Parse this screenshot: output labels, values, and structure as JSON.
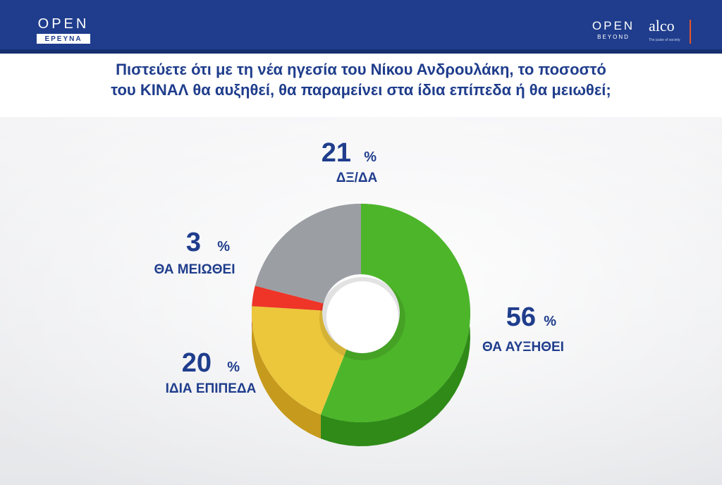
{
  "header": {
    "logo_left_top": "OPEN",
    "logo_left_bottom": "ΕΡΕΥΝΑ",
    "logo_right_top": "OPEN",
    "logo_right_bottom": "BEYOND",
    "partner_name": "alco",
    "partner_tagline": "The pulse of society",
    "background_color": "#1f3d8c"
  },
  "question": {
    "line1": "Πιστεύετε ότι  με τη νέα ηγεσία του Νίκου Ανδρουλάκη, το ποσοστό",
    "line2": "του ΚΙΝΑΛ θα αυξηθεί, θα παραμείνει στα ίδια επίπεδα ή θα μειωθεί;"
  },
  "chart_data": {
    "type": "pie",
    "style": "3d-donut",
    "unit": "%",
    "slices": [
      {
        "label": "ΘΑ ΑΥΞΗΘΕΙ",
        "value": 56,
        "color": "#4db52a",
        "dark_color": "#2f8a18"
      },
      {
        "label": "ΙΔΙΑ ΕΠΙΠΕΔΑ",
        "value": 20,
        "color": "#ecc73b",
        "dark_color": "#c69a1c"
      },
      {
        "label": "ΘΑ ΜΕΙΩΘΕΙ",
        "value": 3,
        "color": "#ee3528",
        "dark_color": "#b3221a"
      },
      {
        "label": "ΔΞ/ΔΑ",
        "value": 21,
        "color": "#9b9fa4",
        "dark_color": "#73777c"
      }
    ]
  }
}
